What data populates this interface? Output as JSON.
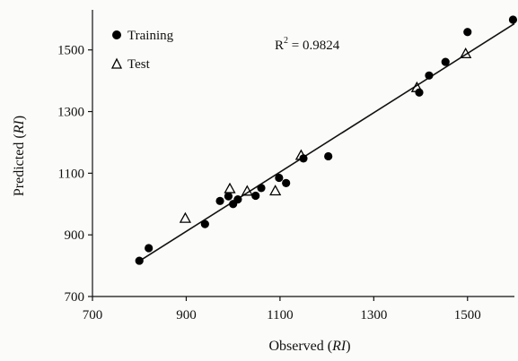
{
  "chart_data": {
    "type": "scatter",
    "title": "",
    "xlabel": "Observed (RI)",
    "ylabel": "Predicted (RI)",
    "xlim": [
      700,
      1600
    ],
    "ylim": [
      700,
      1630
    ],
    "xticks": [
      "700",
      "900",
      "1100",
      "1300",
      "1500"
    ],
    "yticks": [
      "700",
      "900",
      "1100",
      "1300",
      "1500"
    ],
    "grid": false,
    "legend_position": "top-left",
    "annotation": {
      "base": "R",
      "sup": "2",
      "rest": " = 0.9824"
    },
    "fit_line": {
      "x": [
        800,
        1600
      ],
      "y": [
        815,
        1585
      ]
    },
    "series": [
      {
        "name": "Training",
        "marker": "filled-circle",
        "color": "#000000",
        "points": [
          [
            800,
            816
          ],
          [
            820,
            857
          ],
          [
            940,
            935
          ],
          [
            972,
            1010
          ],
          [
            990,
            1025
          ],
          [
            1000,
            1000
          ],
          [
            1010,
            1015
          ],
          [
            1048,
            1027
          ],
          [
            1060,
            1052
          ],
          [
            1098,
            1085
          ],
          [
            1113,
            1068
          ],
          [
            1150,
            1148
          ],
          [
            1203,
            1155
          ],
          [
            1397,
            1362
          ],
          [
            1418,
            1417
          ],
          [
            1453,
            1461
          ],
          [
            1500,
            1558
          ],
          [
            1597,
            1598
          ]
        ]
      },
      {
        "name": "Test",
        "marker": "open-triangle",
        "color": "#000000",
        "points": [
          [
            898,
            954
          ],
          [
            993,
            1050
          ],
          [
            1030,
            1042
          ],
          [
            1090,
            1043
          ],
          [
            1145,
            1158
          ],
          [
            1392,
            1378
          ],
          [
            1496,
            1488
          ]
        ]
      }
    ]
  }
}
